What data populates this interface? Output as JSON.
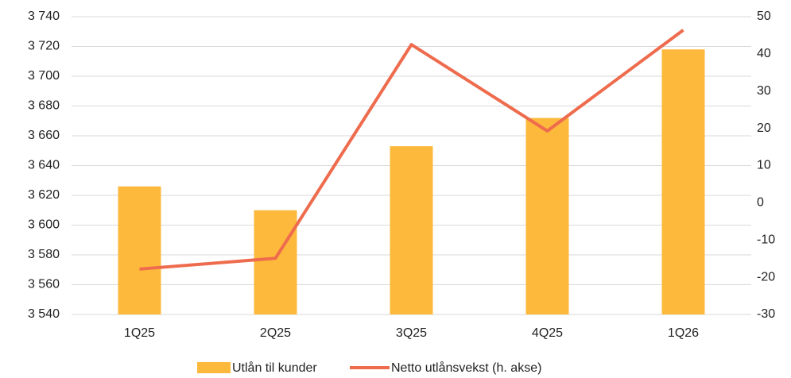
{
  "chart_data": {
    "type": "bar_line",
    "categories": [
      "1Q25",
      "2Q25",
      "3Q25",
      "4Q25",
      "1Q26"
    ],
    "series": [
      {
        "name": "Utlån til kunder",
        "type": "bar",
        "color": "#fdb93c",
        "values": [
          3626,
          3610,
          3653,
          3672,
          3718
        ]
      },
      {
        "name": "Netto utlånsvekst (h. akse)",
        "type": "line",
        "axis": "y2",
        "color": "#ee6c4d",
        "values": [
          -17.8,
          -14.9,
          42.5,
          19.3,
          46.4
        ]
      }
    ],
    "ylim": [
      3540,
      3740
    ],
    "yticks": [
      {
        "value": 3540,
        "label": "3 540"
      },
      {
        "value": 3560,
        "label": "3 560"
      },
      {
        "value": 3580,
        "label": "3 580"
      },
      {
        "value": 3600,
        "label": "3 600"
      },
      {
        "value": 3620,
        "label": "3 620"
      },
      {
        "value": 3640,
        "label": "3 640"
      },
      {
        "value": 3660,
        "label": "3 660"
      },
      {
        "value": 3680,
        "label": "3 680"
      },
      {
        "value": 3700,
        "label": "3 700"
      },
      {
        "value": 3720,
        "label": "3 720"
      },
      {
        "value": 3740,
        "label": "3 740"
      }
    ],
    "y2lim": [
      -30,
      50
    ],
    "y2ticks": [
      -30,
      -20,
      -10,
      0,
      10,
      20,
      30,
      40,
      50
    ],
    "grid": true,
    "legend": "bottom"
  }
}
